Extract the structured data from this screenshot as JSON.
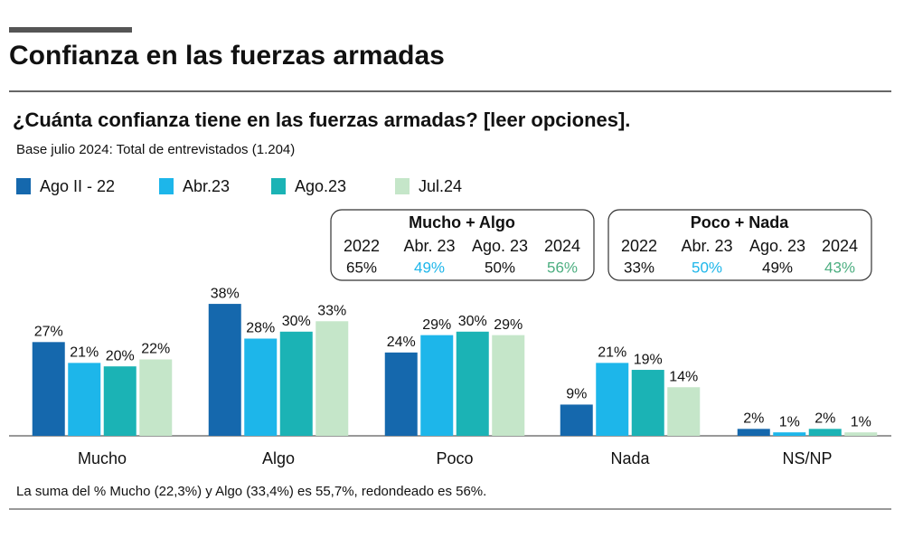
{
  "chart_data": {
    "type": "bar",
    "title": "Confianza en las fuerzas armadas",
    "subtitle": "¿Cuánta confianza tiene en las fuerzas armadas? [leer opciones].",
    "base_note": "Base julio 2024: Total de entrevistados (1.204)",
    "footnote": "La suma del % Mucho (22,3%) y Algo (33,4%) es 55,7%, redondeado es 56%.",
    "categories": [
      "Mucho",
      "Algo",
      "Poco",
      "Nada",
      "NS/NP"
    ],
    "series": [
      {
        "name": "Ago II - 22",
        "color": "#1568ad",
        "values": [
          27,
          38,
          24,
          9,
          2
        ],
        "value_labels": [
          "27%",
          "38%",
          "24%",
          "9%",
          "2%"
        ]
      },
      {
        "name": "Abr.23",
        "color": "#1db6ea",
        "values": [
          21,
          28,
          29,
          21,
          1
        ],
        "value_labels": [
          "21%",
          "28%",
          "29%",
          "21%",
          "1%"
        ]
      },
      {
        "name": "Ago.23",
        "color": "#1bb3b5",
        "values": [
          20,
          30,
          30,
          19,
          2
        ],
        "value_labels": [
          "20%",
          "30%",
          "30%",
          "19%",
          "2%"
        ]
      },
      {
        "name": "Jul.24",
        "color": "#c5e6c9",
        "values": [
          22,
          33,
          29,
          14,
          1
        ],
        "value_labels": [
          "22%",
          "33%",
          "29%",
          "14%",
          "1%"
        ]
      }
    ],
    "summary_boxes": [
      {
        "title": "Mucho + Algo",
        "columns": [
          "2022",
          "Abr. 23",
          "Ago. 23",
          "2024"
        ],
        "values": [
          65,
          49,
          50,
          56
        ],
        "value_labels": [
          "65%",
          "49%",
          "50%",
          "56%"
        ],
        "colors": [
          "#111111",
          "#1db6ea",
          "#111111",
          "#4cae80"
        ]
      },
      {
        "title": "Poco + Nada",
        "columns": [
          "2022",
          "Abr. 23",
          "Ago. 23",
          "2024"
        ],
        "values": [
          33,
          50,
          49,
          43
        ],
        "value_labels": [
          "33%",
          "50%",
          "49%",
          "43%"
        ],
        "colors": [
          "#111111",
          "#1db6ea",
          "#111111",
          "#4cae80"
        ]
      }
    ]
  }
}
